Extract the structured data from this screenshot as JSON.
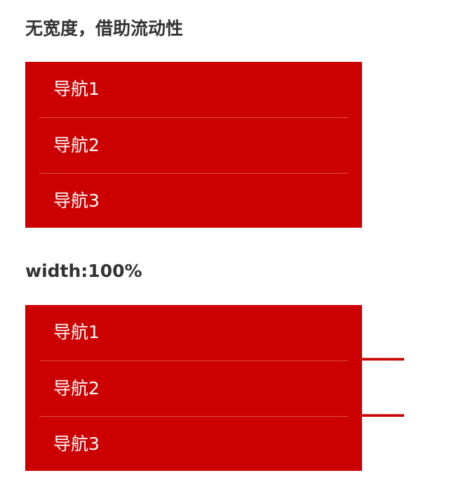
{
  "sections": [
    {
      "title": "无宽度，借助流动性",
      "items": [
        {
          "label": "导航1"
        },
        {
          "label": "导航2"
        },
        {
          "label": "导航3"
        }
      ]
    },
    {
      "title": "width:100%",
      "items": [
        {
          "label": "导航1"
        },
        {
          "label": "导航2"
        },
        {
          "label": "导航3"
        }
      ]
    }
  ],
  "colors": {
    "nav_background": "#cc0000",
    "nav_text": "#ffffff",
    "divider": "#d9504a",
    "heading_text": "#333333"
  }
}
